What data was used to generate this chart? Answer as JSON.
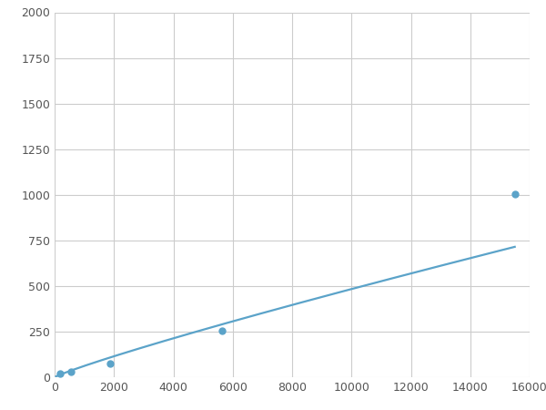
{
  "x": [
    188,
    563,
    1875,
    5625,
    15500
  ],
  "y": [
    20,
    30,
    75,
    255,
    1005
  ],
  "line_color": "#5ba3c9",
  "marker_color": "#5ba3c9",
  "marker_size": 5,
  "line_width": 1.6,
  "xlim": [
    0,
    16000
  ],
  "ylim": [
    0,
    2000
  ],
  "xticks": [
    0,
    2000,
    4000,
    6000,
    8000,
    10000,
    12000,
    14000,
    16000
  ],
  "yticks": [
    0,
    250,
    500,
    750,
    1000,
    1250,
    1500,
    1750,
    2000
  ],
  "grid_color": "#cccccc",
  "bg_color": "#ffffff",
  "figsize": [
    6.0,
    4.5
  ],
  "dpi": 100
}
